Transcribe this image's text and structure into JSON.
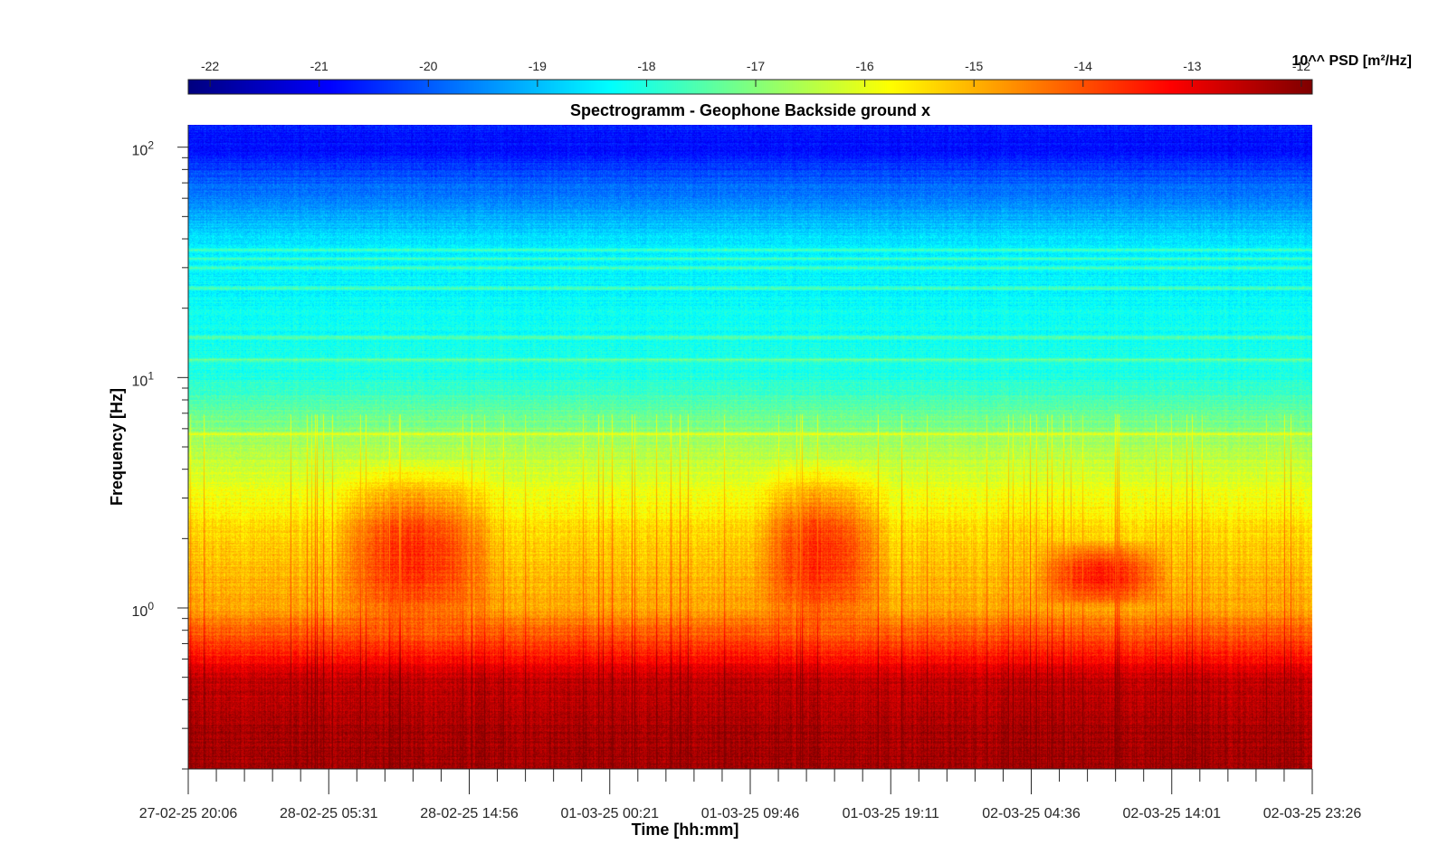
{
  "chart_data": {
    "type": "heatmap",
    "title": "Spectrogramm - Geophone Backside ground x",
    "xlabel": "Time [hh:mm]",
    "ylabel": "Frequency [Hz]",
    "x_ticks": [
      "27-02-25 20:06",
      "28-02-25 05:31",
      "28-02-25 14:56",
      "01-03-25 00:21",
      "01-03-25 09:46",
      "01-03-25 19:11",
      "02-03-25 04:36",
      "02-03-25 14:01",
      "02-03-25 23:26"
    ],
    "y_scale": "log",
    "y_range_hz": [
      0.2,
      125
    ],
    "y_major_ticks": [
      {
        "value": 1,
        "base": "10",
        "exp": "0"
      },
      {
        "value": 10,
        "base": "10",
        "exp": "1"
      },
      {
        "value": 100,
        "base": "10",
        "exp": "2"
      }
    ],
    "colorbar": {
      "label": "10^^ PSD [m²/Hz]",
      "ticks": [
        "-22",
        "-21",
        "-20",
        "-19",
        "-18",
        "-17",
        "-16",
        "-15",
        "-14",
        "-13",
        "-12"
      ],
      "range": [
        -22.2,
        -11.9
      ],
      "colormap": "jet",
      "placement": "top"
    },
    "psd_profile_log10": [
      {
        "freq_hz": 0.2,
        "psd": -12.2
      },
      {
        "freq_hz": 0.3,
        "psd": -12.3
      },
      {
        "freq_hz": 0.5,
        "psd": -12.6
      },
      {
        "freq_hz": 0.7,
        "psd": -13.8
      },
      {
        "freq_hz": 1.0,
        "psd": -14.8
      },
      {
        "freq_hz": 2.0,
        "psd": -15.3
      },
      {
        "freq_hz": 3.0,
        "psd": -15.8
      },
      {
        "freq_hz": 5.0,
        "psd": -16.6
      },
      {
        "freq_hz": 10,
        "psd": -18.0
      },
      {
        "freq_hz": 20,
        "psd": -18.3
      },
      {
        "freq_hz": 40,
        "psd": -18.6
      },
      {
        "freq_hz": 60,
        "psd": -19.6
      },
      {
        "freq_hz": 100,
        "psd": -20.8
      },
      {
        "freq_hz": 125,
        "psd": -20.6
      }
    ],
    "spectral_lines_hz": [
      5.7,
      12,
      15,
      24.5,
      30,
      33,
      36
    ],
    "daytime_activity_windows": [
      {
        "start": "28-02-25 05:31",
        "end": "28-02-25 17:00",
        "freq_hz": [
          0.8,
          4.5
        ]
      },
      {
        "start": "01-03-25 09:46",
        "end": "01-03-25 19:11",
        "freq_hz": [
          0.8,
          4.5
        ]
      },
      {
        "start": "02-03-25 04:36",
        "end": "02-03-25 14:01",
        "freq_hz": [
          1.0,
          2.0
        ]
      }
    ]
  }
}
